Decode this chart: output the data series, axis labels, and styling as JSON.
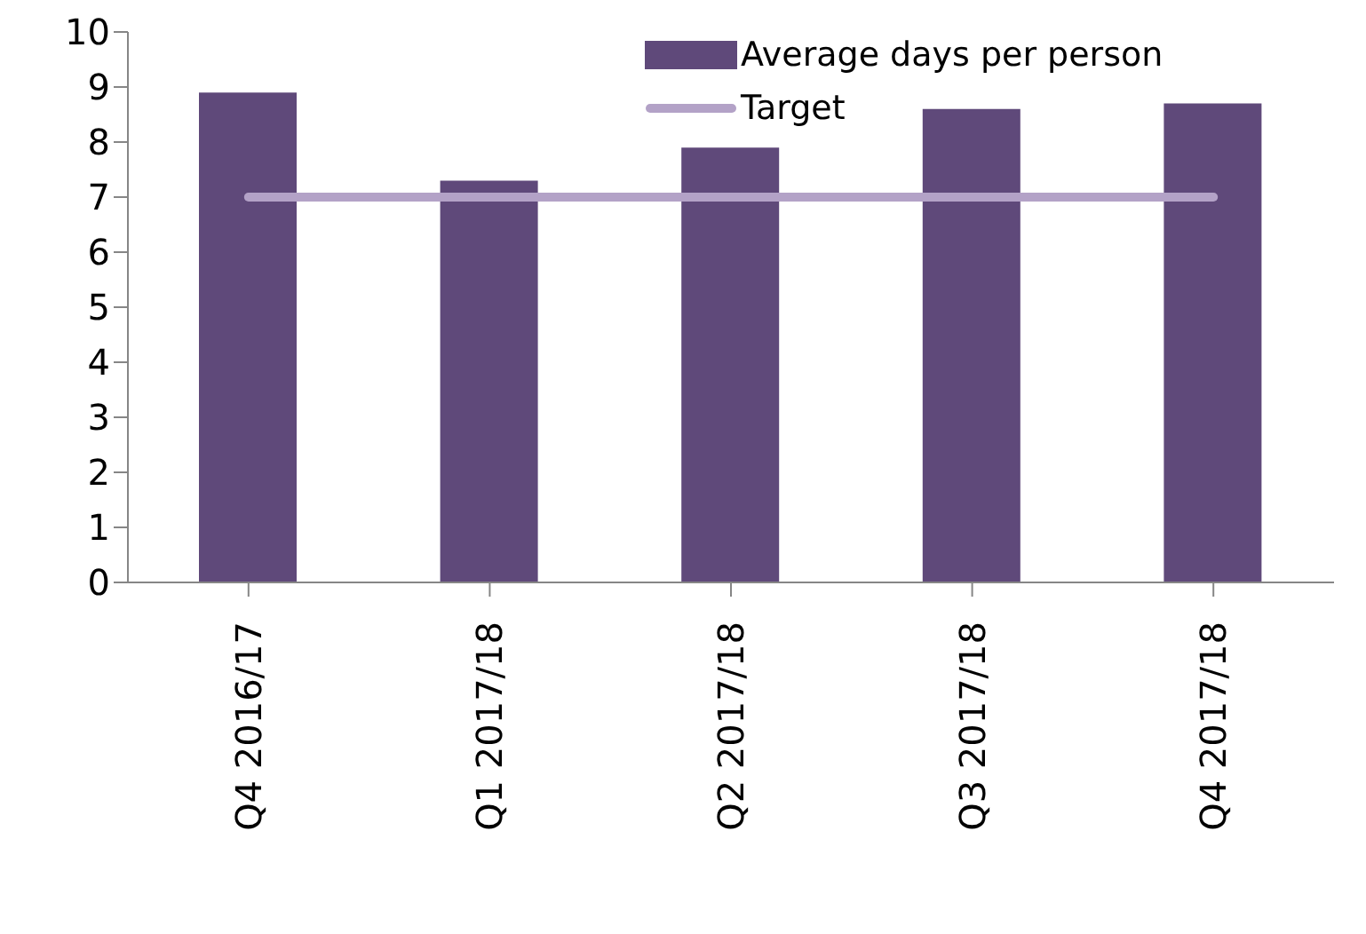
{
  "chart_data": {
    "type": "bar",
    "categories": [
      "Q4 2016/17",
      "Q1 2017/18",
      "Q2 2017/18",
      "Q3 2017/18",
      "Q4 2017/18"
    ],
    "series": [
      {
        "name": "Average days per person",
        "color": "#5f497a",
        "values": [
          8.9,
          7.3,
          7.9,
          8.6,
          8.7
        ]
      },
      {
        "name": "Target",
        "type": "line",
        "color": "#b3a2c7",
        "values": [
          7,
          7,
          7,
          7,
          7
        ]
      }
    ],
    "ylim": [
      0,
      10
    ],
    "yticks": [
      0,
      1,
      2,
      3,
      4,
      5,
      6,
      7,
      8,
      9,
      10
    ],
    "grid": false,
    "legend": "top right",
    "marker": "none"
  }
}
